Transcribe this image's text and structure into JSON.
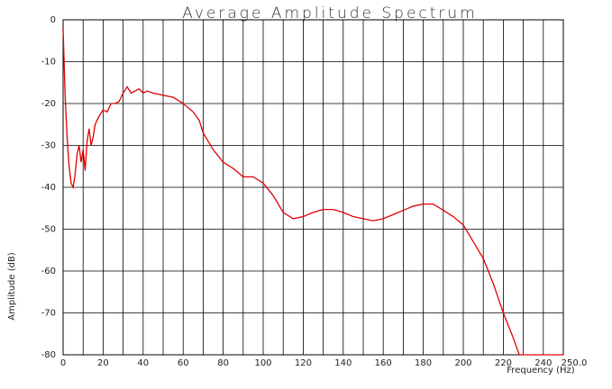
{
  "chart_data": {
    "type": "line",
    "title": "Average Amplitude Spectrum",
    "x_label": "Frequency (Hz)",
    "y_label": "Amplitude (dB)",
    "color": "#e00000",
    "grid": true,
    "xlim": [
      0,
      250
    ],
    "ylim": [
      -80,
      0
    ],
    "xticks": [
      0,
      20,
      40,
      60,
      80,
      100,
      120,
      140,
      160,
      180,
      200,
      220,
      240,
      {
        "value": 250,
        "label": "250.0"
      }
    ],
    "x_minor_ticks": [
      10,
      30,
      50,
      70,
      90,
      110,
      130,
      150,
      170,
      190,
      210,
      230
    ],
    "yticks": [
      0,
      -10,
      -20,
      -30,
      -40,
      -50,
      -60,
      -70,
      -80
    ],
    "x": [
      0,
      0.5,
      1,
      2,
      3,
      4,
      5,
      6,
      7,
      8,
      9,
      10,
      11,
      12,
      13,
      14,
      15,
      16,
      18,
      20,
      22,
      24,
      26,
      28,
      30,
      32,
      34,
      36,
      38,
      40,
      42,
      45,
      50,
      55,
      60,
      65,
      68,
      70,
      75,
      80,
      85,
      90,
      95,
      100,
      105,
      110,
      115,
      120,
      125,
      130,
      135,
      140,
      145,
      150,
      155,
      160,
      165,
      170,
      175,
      180,
      185,
      190,
      195,
      200,
      205,
      210,
      215,
      220,
      225,
      228,
      230,
      250
    ],
    "values": [
      -2,
      -10,
      -18,
      -28,
      -35,
      -39,
      -40,
      -37,
      -32,
      -30,
      -34,
      -31,
      -36,
      -29,
      -26,
      -30,
      -28,
      -25,
      -23,
      -21.5,
      -22,
      -20,
      -20,
      -19.5,
      -17.5,
      -16,
      -17.5,
      -17,
      -16.5,
      -17.5,
      -17,
      -17.5,
      -18,
      -18.5,
      -20,
      -22,
      -24,
      -27,
      -31,
      -34,
      -35.5,
      -37.5,
      -37.5,
      -39,
      -42,
      -46,
      -47.5,
      -47,
      -46,
      -45.3,
      -45.3,
      -46,
      -47,
      -47.5,
      -48,
      -47.5,
      -46.5,
      -45.5,
      -44.5,
      -44,
      -44,
      -45.5,
      -47,
      -49,
      -53,
      -57,
      -63,
      -70,
      -76,
      -80,
      -80,
      -80
    ]
  }
}
